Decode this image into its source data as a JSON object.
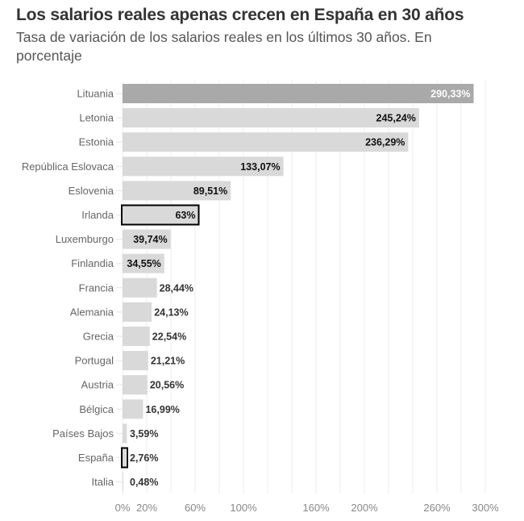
{
  "chart_data": {
    "type": "bar",
    "orientation": "horizontal",
    "title": "Los salarios reales apenas crecen en España en 30 años",
    "subtitle": "Tasa de variación de los salarios reales en los últimos 30 años. En porcentaje",
    "xlabel": "",
    "ylabel": "",
    "xlim": [
      0,
      300
    ],
    "grid": true,
    "categories": [
      "Lituania",
      "Letonia",
      "Estonia",
      "República Eslovaca",
      "Eslovenia",
      "Irlanda",
      "Luxemburgo",
      "Finlandia",
      "Francia",
      "Alemania",
      "Grecia",
      "Portugal",
      "Austria",
      "Bélgica",
      "Países Bajos",
      "España",
      "Italia"
    ],
    "values": [
      290.33,
      245.24,
      236.29,
      133.07,
      89.51,
      63,
      39.74,
      34.55,
      28.44,
      24.13,
      22.54,
      21.21,
      20.56,
      16.99,
      3.59,
      2.76,
      0.48
    ],
    "value_labels": [
      "290,33%",
      "245,24%",
      "236,29%",
      "133,07%",
      "89,51%",
      "63%",
      "39,74%",
      "34,55%",
      "28,44%",
      "24,13%",
      "22,54%",
      "21,21%",
      "20,56%",
      "16,99%",
      "3,59%",
      "2,76%",
      "0,48%"
    ],
    "highlighted": [
      "Irlanda",
      "España"
    ],
    "emphasized": [
      "Lituania"
    ],
    "x_ticks": [
      0,
      20,
      60,
      100,
      160,
      200,
      260,
      300
    ],
    "x_tick_labels": [
      "0%",
      "20%",
      "60%",
      "100%",
      "160%",
      "200%",
      "260%",
      "300%"
    ],
    "gridlines": [
      0,
      20,
      40,
      60,
      80,
      100,
      120,
      140,
      160,
      180,
      200,
      220,
      240,
      260,
      280,
      300
    ],
    "colors": {
      "bar": "#d9d9d9",
      "bar_emphasized": "#a9a9a9",
      "highlight_outline": "#000000",
      "label_dark": "#111111",
      "label_light": "#ffffff",
      "grid": "#eeeeee"
    }
  }
}
